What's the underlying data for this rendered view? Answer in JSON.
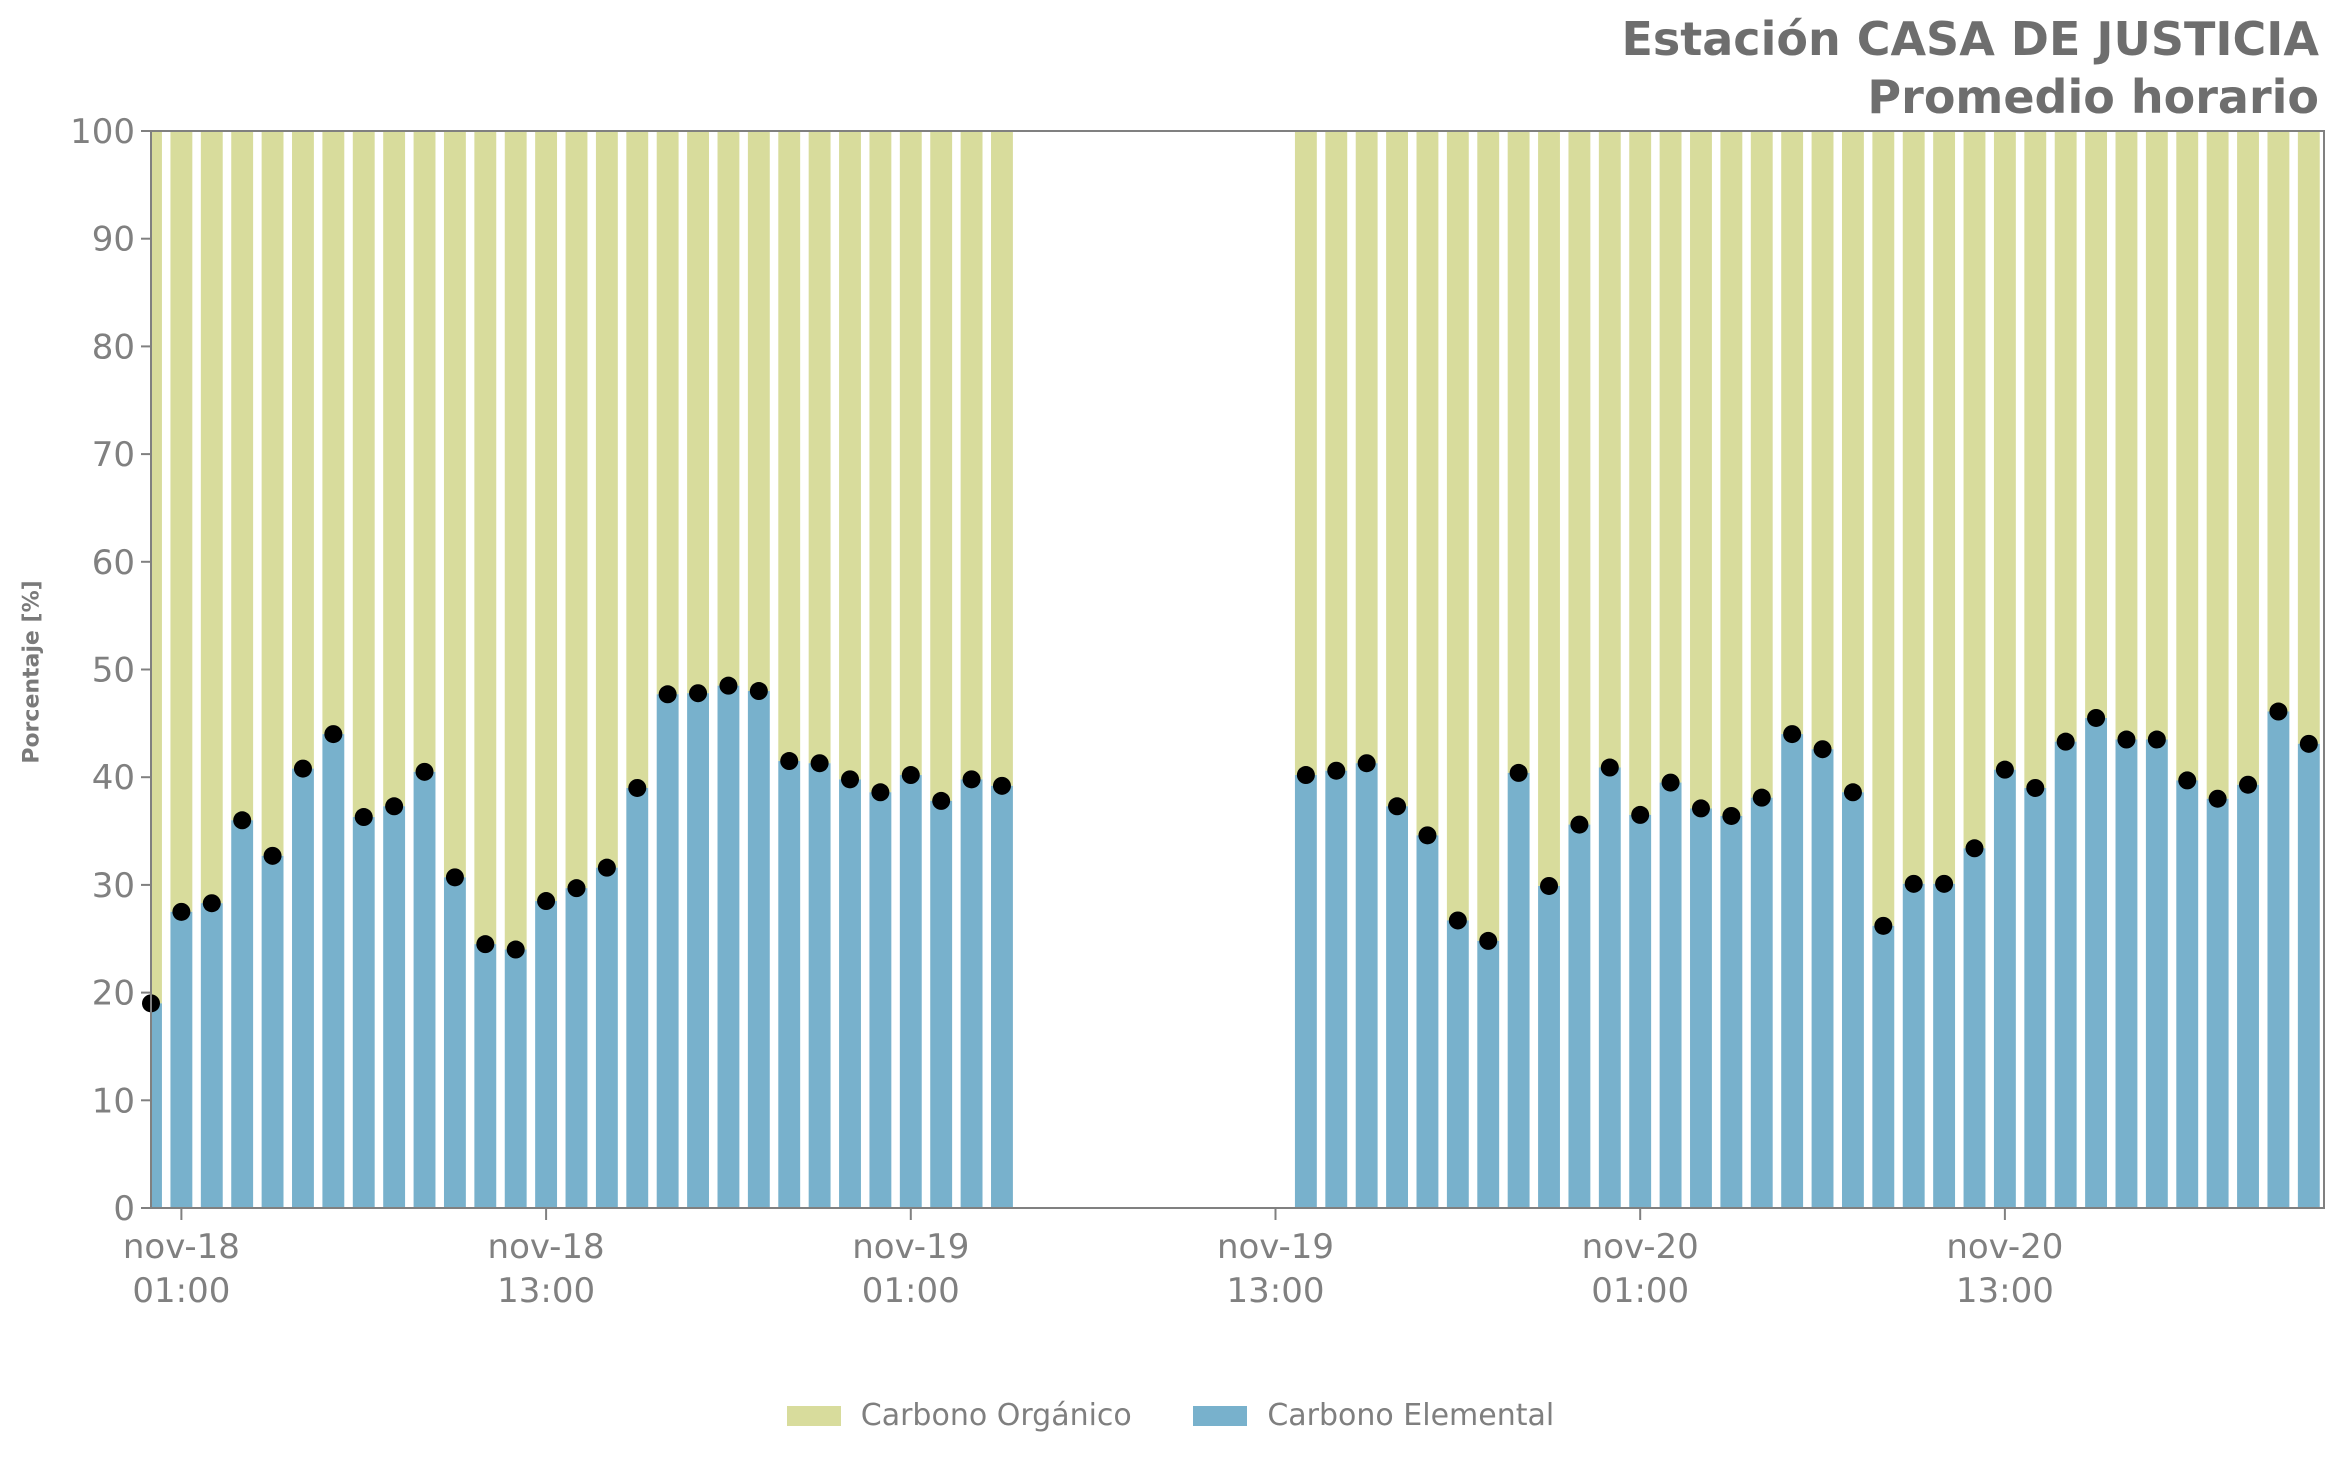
{
  "chart_data": {
    "type": "bar",
    "title": "Estación CASA DE JUSTICIA",
    "subtitle": "Promedio horario",
    "ylabel": "Porcentaje [%]",
    "ylim": [
      0,
      100
    ],
    "yticks": [
      0,
      10,
      20,
      30,
      40,
      50,
      60,
      70,
      80,
      90,
      100
    ],
    "grid": false,
    "legend_position": "bottom-center",
    "x_unit": "hour",
    "x_range": [
      "2023-11-18 00:00",
      "2023-11-20 23:00"
    ],
    "x_ticks": [
      {
        "x": "2023-11-18 01:00",
        "line1": "nov-18",
        "line2": "01:00"
      },
      {
        "x": "2023-11-18 13:00",
        "line1": "nov-18",
        "line2": "13:00"
      },
      {
        "x": "2023-11-19 01:00",
        "line1": "nov-19",
        "line2": "01:00"
      },
      {
        "x": "2023-11-19 13:00",
        "line1": "nov-19",
        "line2": "13:00"
      },
      {
        "x": "2023-11-20 01:00",
        "line1": "nov-20",
        "line2": "01:00"
      },
      {
        "x": "2023-11-20 13:00",
        "line1": "nov-20",
        "line2": "13:00"
      }
    ],
    "series": [
      {
        "name": "Carbono Orgánico",
        "color": "#d8dc9c",
        "stack_top": 100
      },
      {
        "name": "Carbono Elemental",
        "color": "#78b1cc",
        "marker_color": "#000000"
      }
    ],
    "segments": [
      {
        "start": "2023-11-18 00:00",
        "values": [
          19,
          27.5,
          28.3,
          36,
          32.7,
          40.8,
          44,
          36.3,
          37.3,
          40.5,
          30.7,
          24.5,
          24,
          28.5,
          29.7,
          31.6,
          39,
          47.7,
          47.8,
          48.5,
          48,
          41.5,
          41.3,
          39.8,
          38.6,
          40.2,
          37.8,
          39.8,
          39.2
        ]
      },
      {
        "start": "2023-11-19 14:00",
        "values": [
          40.2,
          40.6,
          41.3,
          37.3,
          34.6,
          26.7,
          24.8,
          40.4,
          29.9,
          35.6,
          40.9,
          36.5,
          39.5,
          37.1,
          36.4,
          38.1,
          44,
          42.6,
          38.6,
          26.2,
          30.1,
          30.1,
          33.4,
          40.7,
          39,
          43.3,
          45.5,
          43.5,
          43.5,
          39.7,
          38,
          39.3,
          46.1,
          43.1
        ]
      }
    ]
  }
}
